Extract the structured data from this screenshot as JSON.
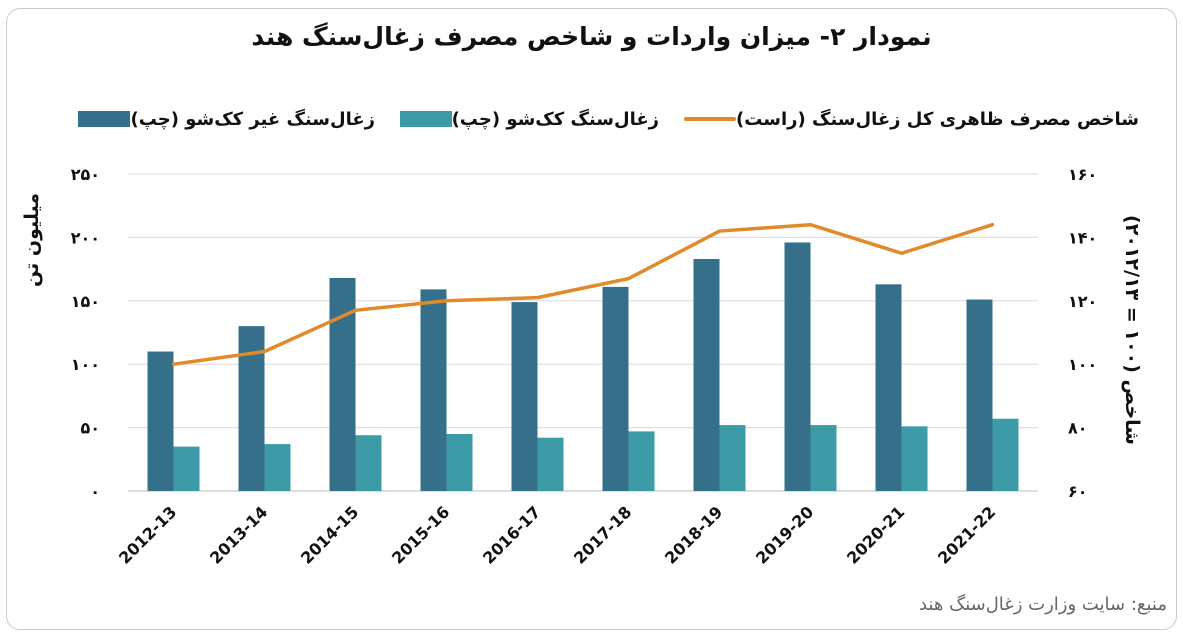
{
  "chart_data": {
    "type": "bar",
    "title": "نمودار ۲- میزان واردات و شاخص مصرف زغال‌سنگ هند",
    "categories": [
      "2012-13",
      "2013-14",
      "2014-15",
      "2015-16",
      "2016-17",
      "2017-18",
      "2018-19",
      "2019-20",
      "2020-21",
      "2021-22"
    ],
    "series": [
      {
        "name": "زغال‌سنگ غیر کک‌شو (چپ)",
        "type": "bar",
        "axis": "left",
        "color": "#366f8a",
        "values": [
          110,
          130,
          168,
          159,
          149,
          161,
          183,
          196,
          163,
          151
        ]
      },
      {
        "name": "زغال‌سنگ کک‌شو (چپ)",
        "type": "bar",
        "axis": "left",
        "color": "#3d9ba8",
        "values": [
          35,
          37,
          44,
          45,
          42,
          47,
          52,
          52,
          51,
          57
        ]
      },
      {
        "name": "شاخص مصرف ظاهری کل زغال‌سنگ (راست)",
        "type": "line",
        "axis": "right",
        "color": "#e08a2b",
        "values": [
          100,
          104,
          117,
          120,
          121,
          127,
          142,
          144,
          135,
          144
        ]
      }
    ],
    "ylabel": "میلیون تن",
    "ylim": [
      0,
      250
    ],
    "yticks": [
      "۰",
      "۵۰",
      "۱۰۰",
      "۱۵۰",
      "۲۰۰",
      "۲۵۰"
    ],
    "y2label": "شاخص (۱۰۰ = ۲۰۱۲/۱۳)",
    "y2lim": [
      60,
      160
    ],
    "y2ticks": [
      "۶۰",
      "۸۰",
      "۱۰۰",
      "۱۲۰",
      "۱۴۰",
      "۱۶۰"
    ],
    "grid": true,
    "legend_position": "top"
  },
  "source": "منبع: سایت وزارت زغال‌سنگ هند"
}
